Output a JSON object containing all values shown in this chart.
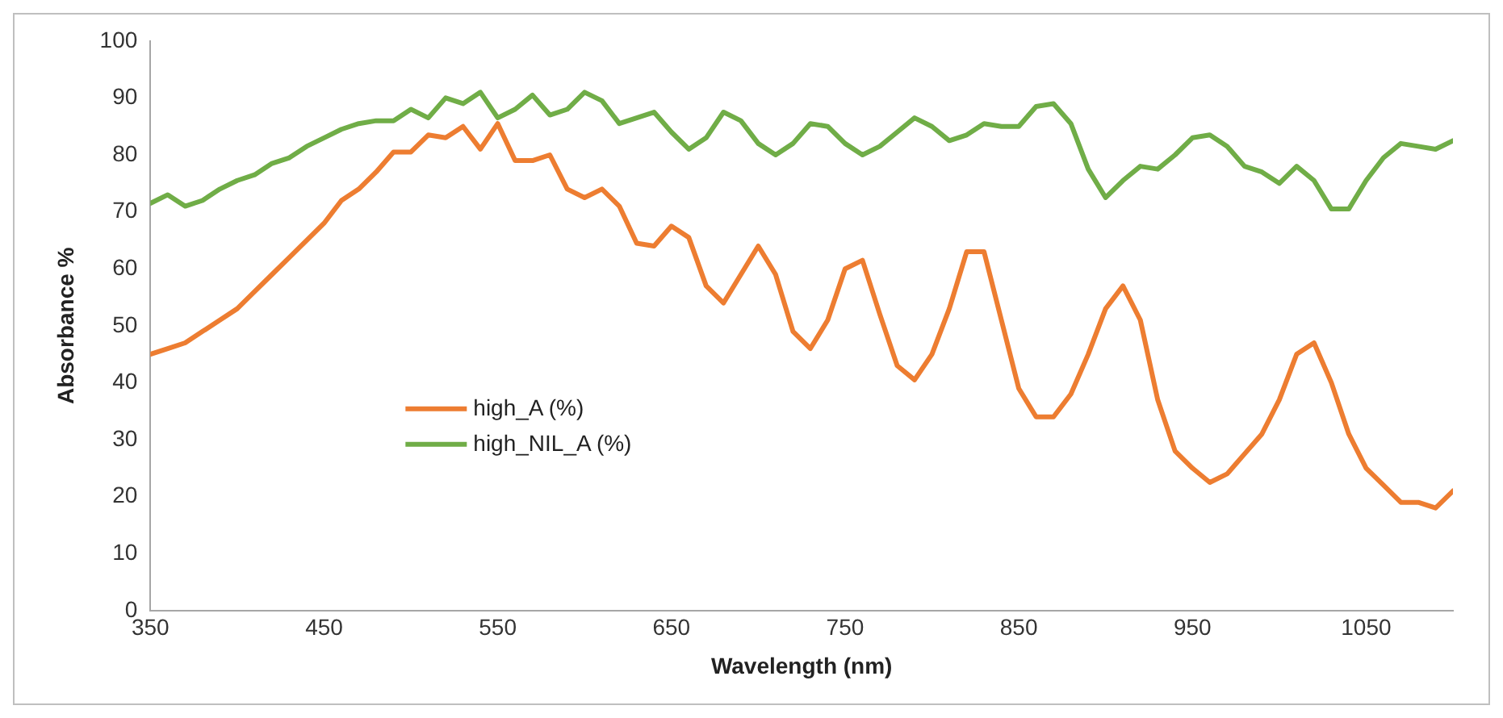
{
  "chart_data": {
    "type": "line",
    "xlabel": "Wavelength (nm)",
    "ylabel": "Absorbance %",
    "x": [
      350,
      360,
      370,
      380,
      390,
      400,
      410,
      420,
      430,
      440,
      450,
      460,
      470,
      480,
      490,
      500,
      510,
      520,
      530,
      540,
      550,
      560,
      570,
      580,
      590,
      600,
      610,
      620,
      630,
      640,
      650,
      660,
      670,
      680,
      690,
      700,
      710,
      720,
      730,
      740,
      750,
      760,
      770,
      780,
      790,
      800,
      810,
      820,
      830,
      840,
      850,
      860,
      870,
      880,
      890,
      900,
      910,
      920,
      930,
      940,
      950,
      960,
      970,
      980,
      990,
      1000,
      1010,
      1020,
      1030,
      1040,
      1050,
      1060,
      1070,
      1080,
      1090,
      1100
    ],
    "series": [
      {
        "name": "high_A (%)",
        "color": "#ed7d31",
        "values": [
          45,
          46,
          47,
          49,
          51,
          53,
          56,
          59,
          62,
          65,
          68,
          72,
          74,
          77,
          80.5,
          80.5,
          83.5,
          83,
          85,
          81,
          85.5,
          79,
          79,
          80,
          74,
          72.5,
          74,
          71,
          64.5,
          64,
          67.5,
          65.5,
          57,
          54,
          59,
          64,
          59,
          49,
          46,
          51,
          60,
          61.5,
          52,
          43,
          40.5,
          45,
          53,
          63,
          63,
          51,
          39,
          34,
          34,
          38,
          45,
          53,
          57,
          51,
          37,
          28,
          25,
          22.5,
          24,
          27.5,
          31,
          37,
          45,
          47,
          40,
          31,
          25,
          22,
          19,
          19,
          18,
          21
        ]
      },
      {
        "name": "high_NIL_A (%)",
        "color": "#70ad47",
        "values": [
          71.5,
          73,
          71,
          72,
          74,
          75.5,
          76.5,
          78.5,
          79.5,
          81.5,
          83,
          84.5,
          85.5,
          86,
          86,
          88,
          86.5,
          90,
          89,
          91,
          86.5,
          88,
          90.5,
          87,
          88,
          91,
          89.5,
          85.5,
          86.5,
          87.5,
          84,
          81,
          83,
          87.5,
          86,
          82,
          80,
          82,
          85.5,
          85,
          82,
          80,
          81.5,
          84,
          86.5,
          85,
          82.5,
          83.5,
          85.5,
          85,
          85,
          88.5,
          89,
          85.5,
          77.5,
          72.5,
          75.5,
          78,
          77.5,
          80,
          83,
          83.5,
          81.5,
          78,
          77,
          75,
          78,
          75.5,
          70.5,
          70.5,
          75.5,
          79.5,
          82,
          81.5,
          81,
          82.5
        ]
      }
    ],
    "xlim": [
      350,
      1100
    ],
    "xticks": [
      350,
      450,
      550,
      650,
      750,
      850,
      950,
      1050
    ],
    "ylim": [
      0,
      100
    ],
    "yticks": [
      0,
      10,
      20,
      30,
      40,
      50,
      60,
      70,
      80,
      90,
      100
    ],
    "grid": false,
    "legend": "left",
    "marker": "none",
    "line_style": "solid"
  }
}
